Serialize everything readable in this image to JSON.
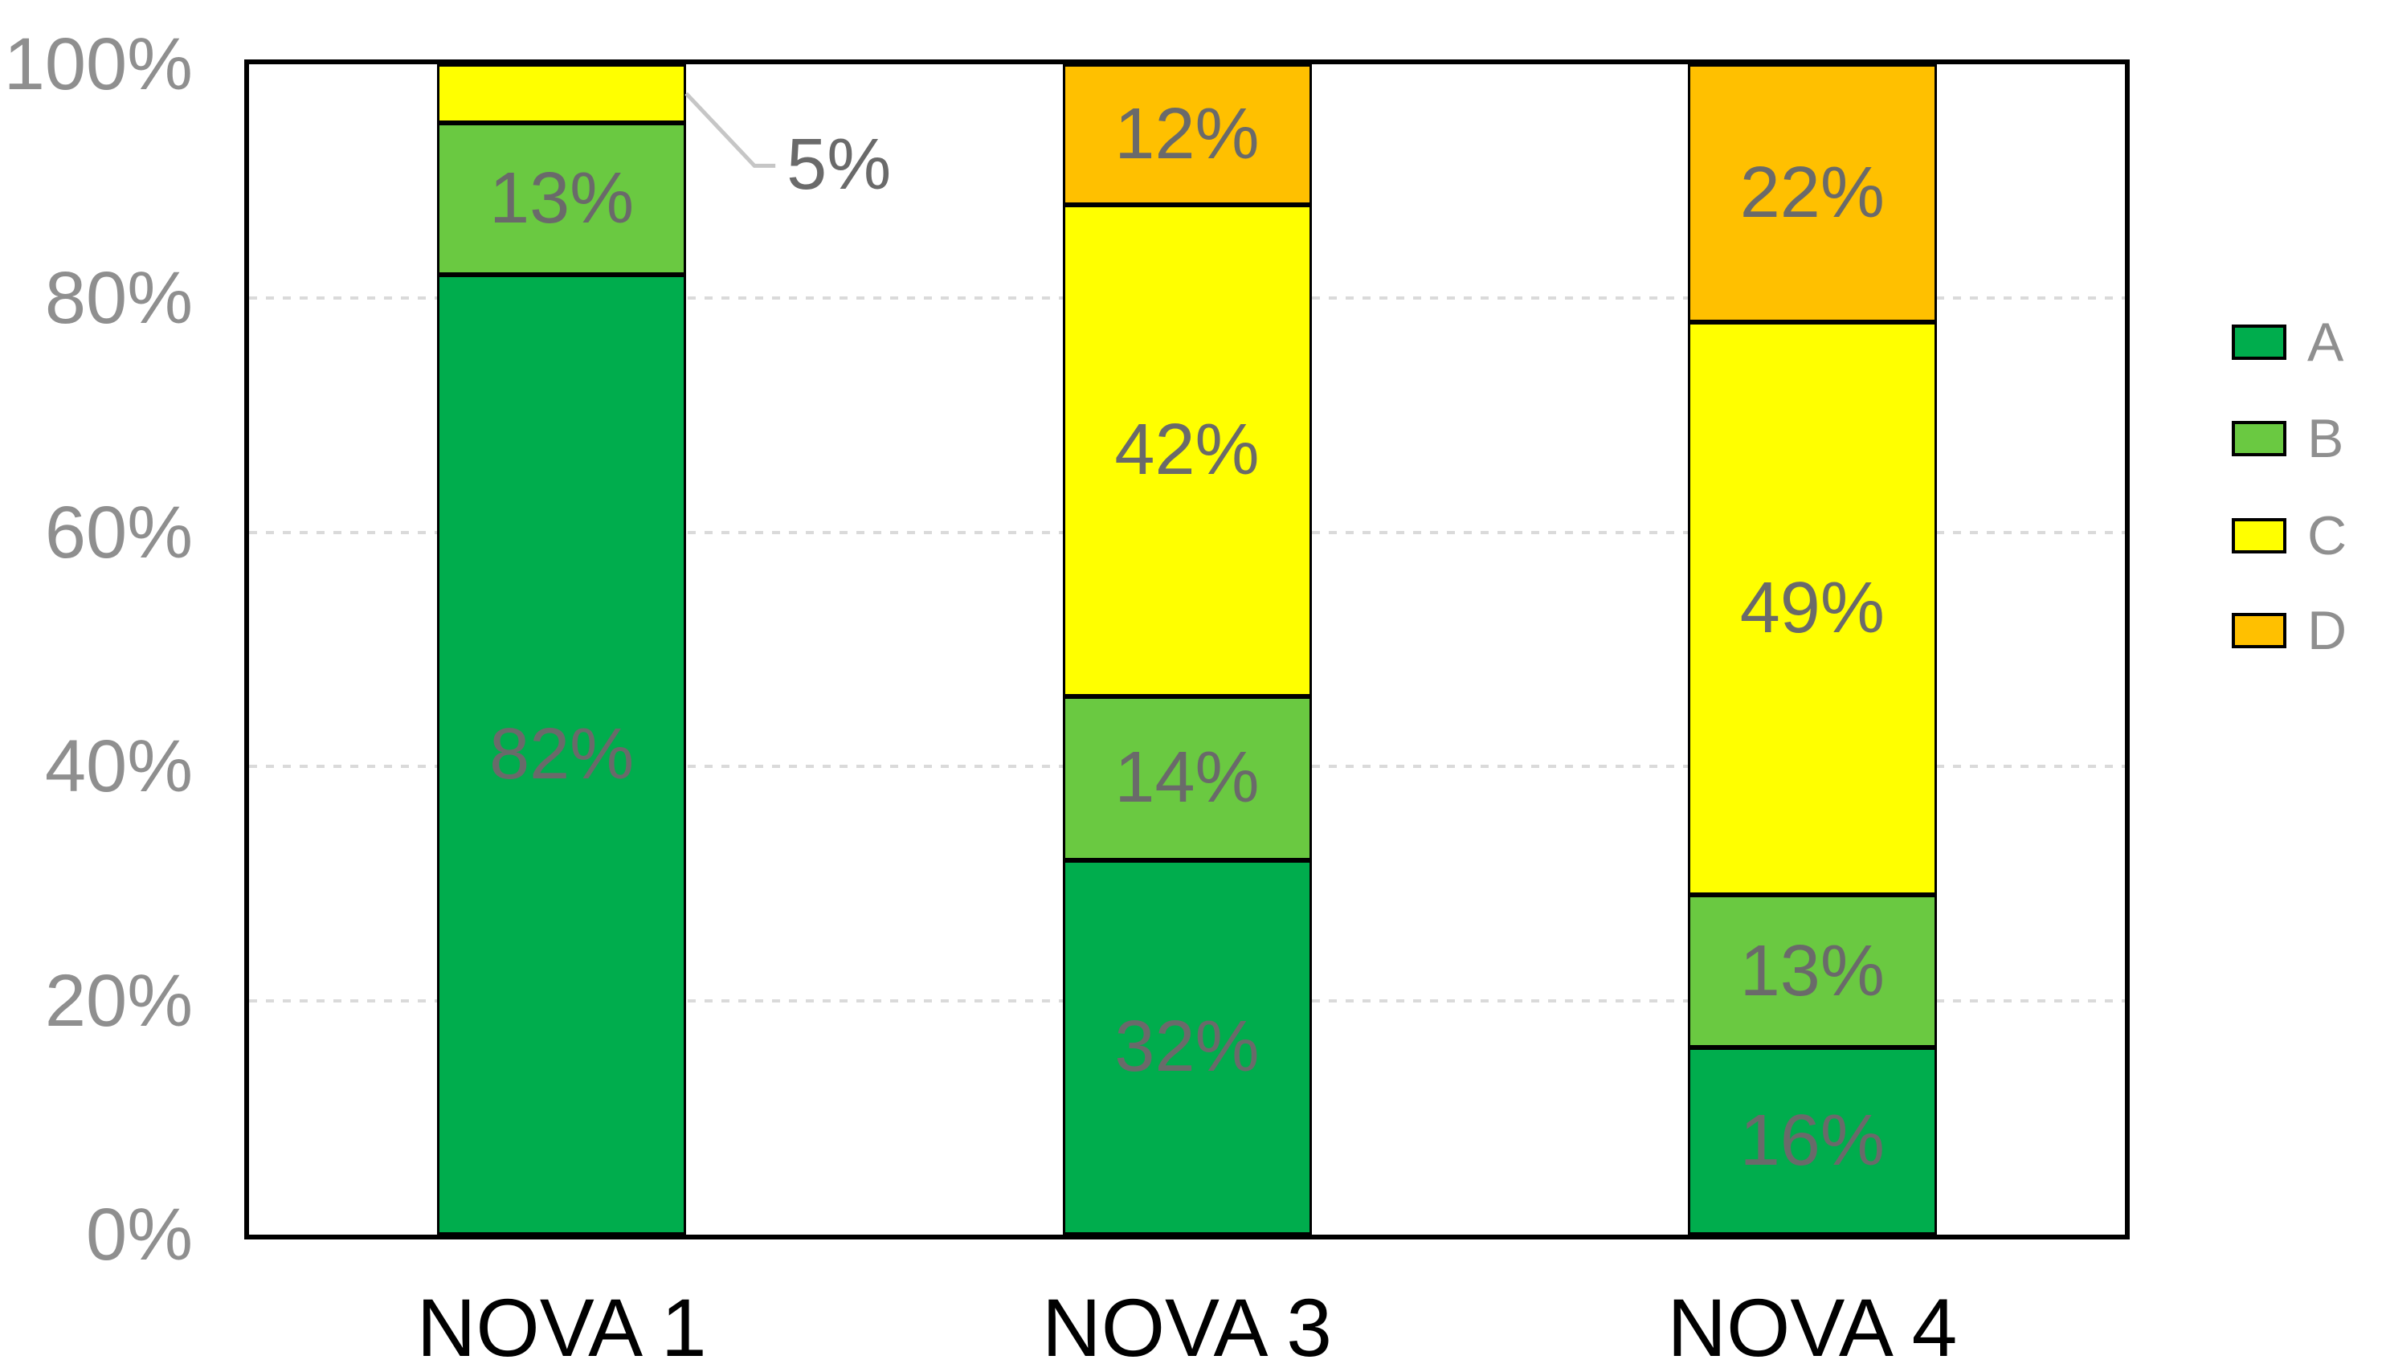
{
  "chart_data": {
    "type": "bar",
    "variant": "100-percent-stacked-column",
    "title": "",
    "categories": [
      "NOVA 1",
      "NOVA 3",
      "NOVA 4"
    ],
    "series": [
      {
        "name": "A",
        "color": "#00AD4D",
        "values": [
          82,
          32,
          16
        ]
      },
      {
        "name": "B",
        "color": "#6AC941",
        "values": [
          13,
          14,
          13
        ]
      },
      {
        "name": "C",
        "color": "#FFFF00",
        "values": [
          5,
          42,
          49
        ]
      },
      {
        "name": "D",
        "color": "#FFC000",
        "values": [
          0,
          12,
          22
        ]
      }
    ],
    "data_labels": {
      "format": "{value}%",
      "color": "#6A6A6A",
      "visible": [
        [
          "82%",
          "32%",
          "16%"
        ],
        [
          "13%",
          "14%",
          "13%"
        ],
        [
          "5%",
          "42%",
          "49%"
        ],
        [
          "",
          "12%",
          "22%"
        ]
      ]
    },
    "callout": {
      "category_index": 0,
      "series_index": 2,
      "text": "5%",
      "leader_color": "#C6C6C6"
    },
    "y_axis": {
      "min": 0,
      "max": 100,
      "tick_step": 20,
      "tick_labels": [
        "0%",
        "20%",
        "40%",
        "60%",
        "80%",
        "100%"
      ],
      "label_color": "#8F8F8F"
    },
    "x_axis": {
      "labels": [
        "NOVA 1",
        "NOVA 3",
        "NOVA 4"
      ],
      "label_color": "#000000"
    },
    "gridlines": {
      "levels": [
        20,
        40,
        60,
        80
      ],
      "style": "dashed",
      "color": "#DADADA"
    },
    "plot_border_color": "#000000",
    "segment_border_color": "#000000",
    "background_color": "#FFFFFF",
    "legend": {
      "position": "right",
      "entries": [
        "A",
        "B",
        "C",
        "D"
      ]
    }
  }
}
